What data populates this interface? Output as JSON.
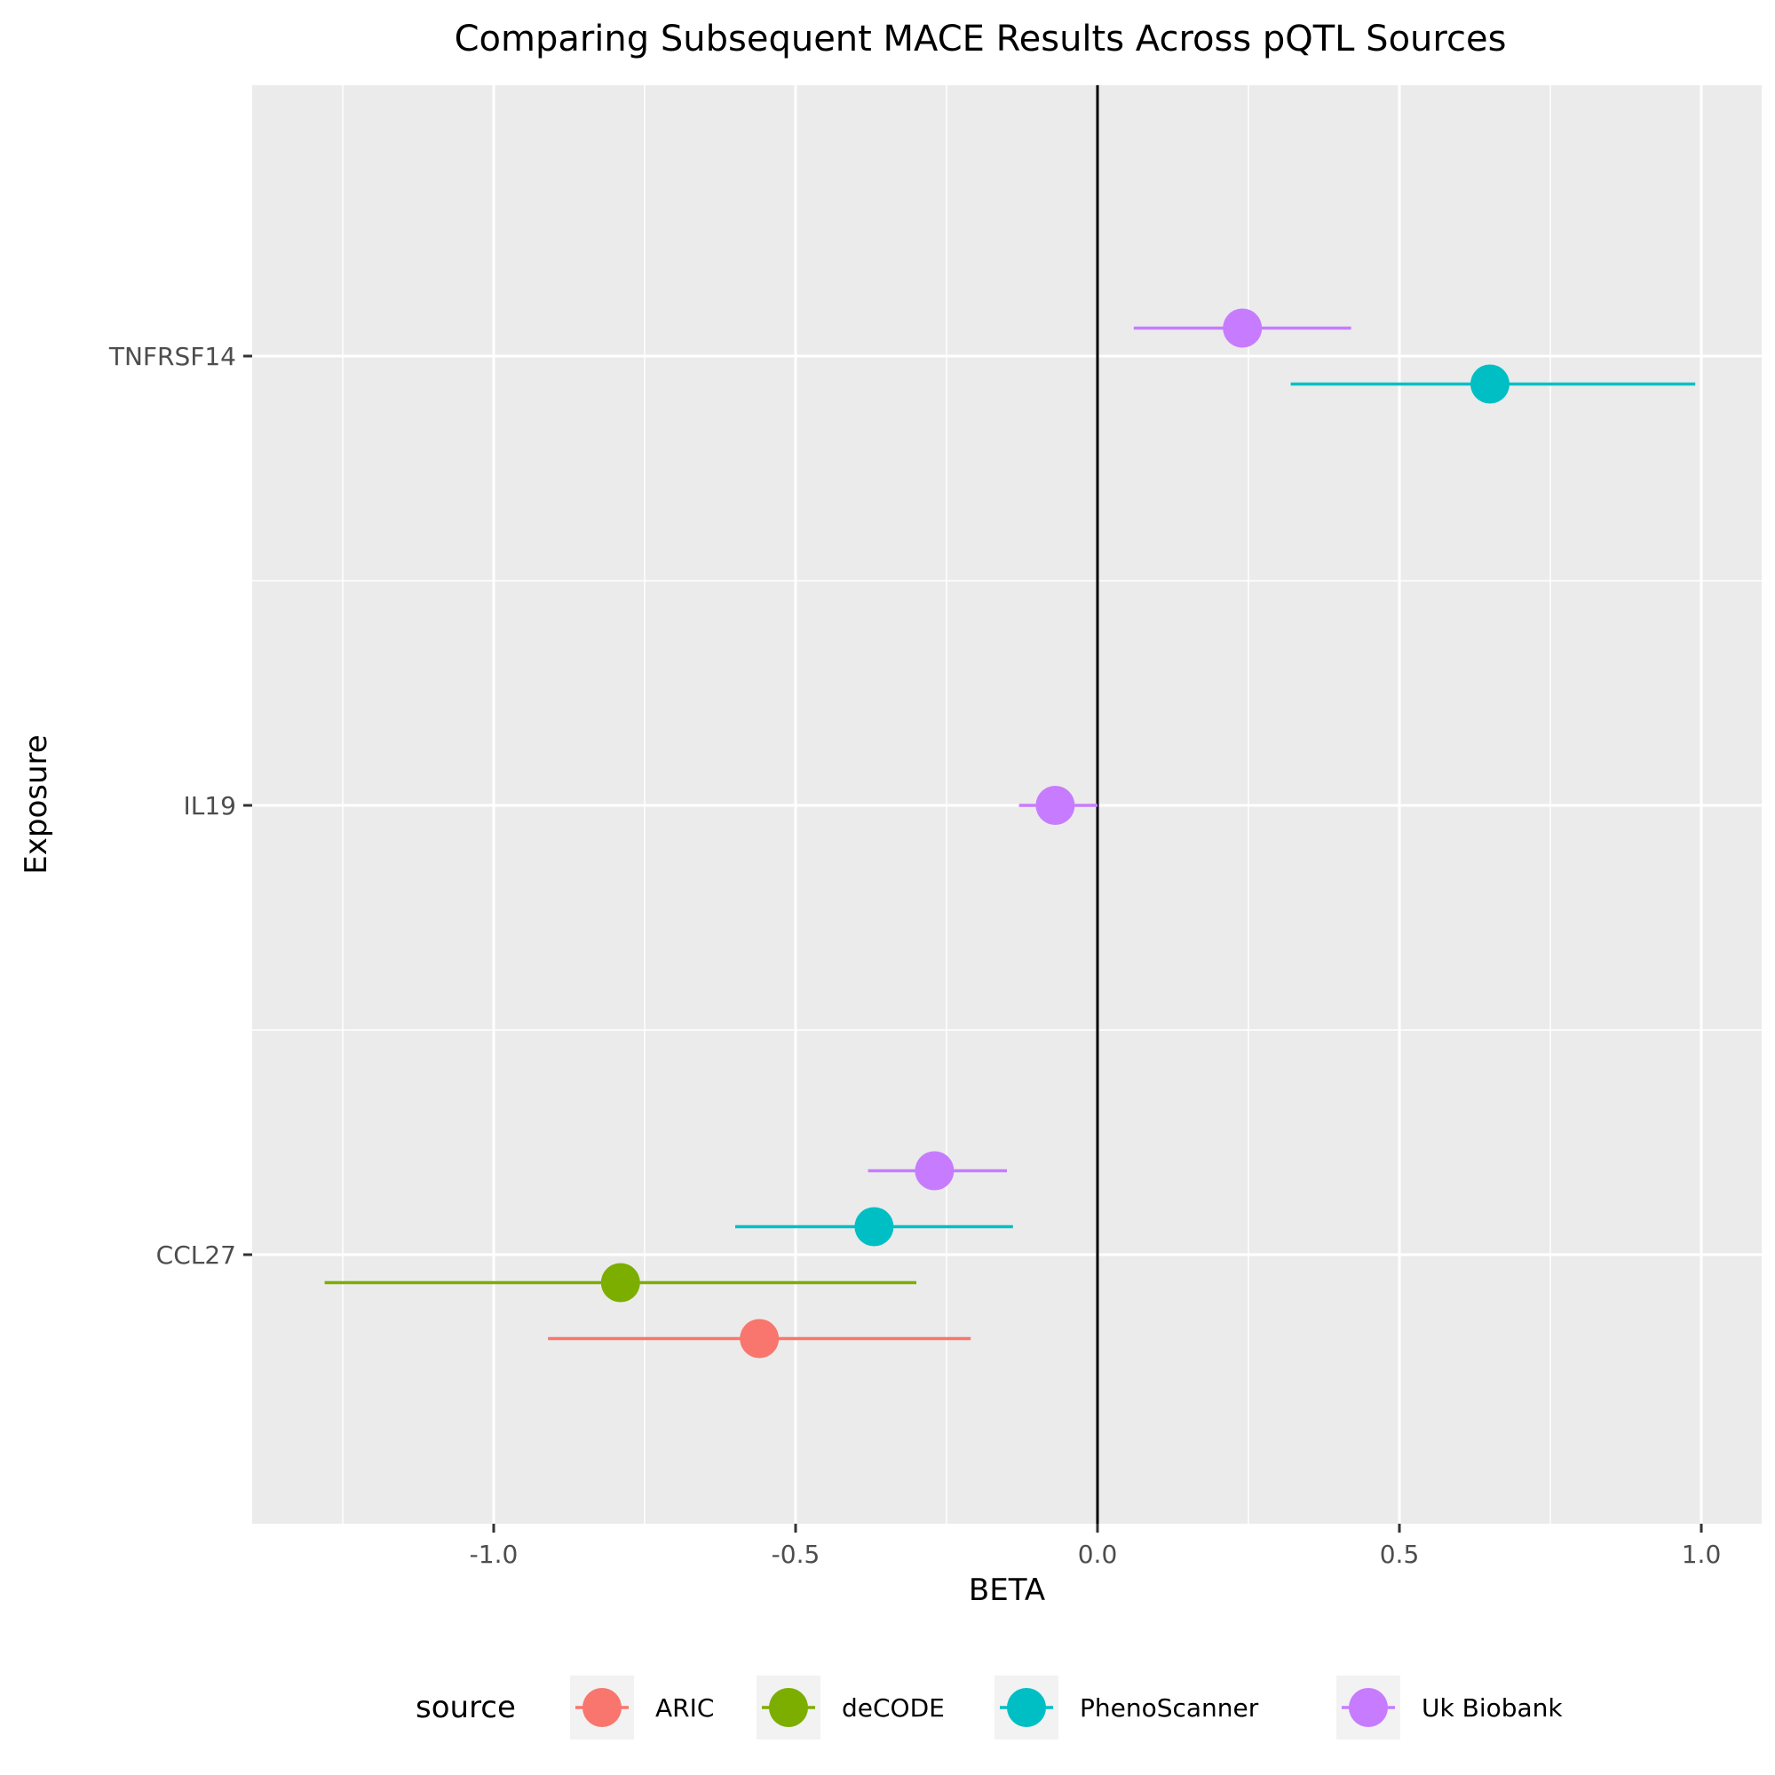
{
  "chart_data": {
    "type": "forest",
    "title": "Comparing Subsequent MACE Results Across pQTL Sources",
    "xlabel": "BETA",
    "ylabel": "Exposure",
    "xlim": [
      -1.4,
      1.1
    ],
    "x_ticks": [
      -1.0,
      -0.5,
      0.0,
      0.5,
      1.0
    ],
    "x_tick_labels": [
      "-1.0",
      "-0.5",
      "0.0",
      "0.5",
      "1.0"
    ],
    "categories": [
      "CCL27",
      "IL19",
      "TNFRSF14"
    ],
    "reference_line": 0.0,
    "grid": true,
    "legend": {
      "title": "source",
      "position": "bottom"
    },
    "series": [
      {
        "name": "ARIC",
        "color": "#F8766D",
        "points": [
          {
            "category": "CCL27",
            "beta": -0.56,
            "lo": -0.91,
            "hi": -0.21
          }
        ]
      },
      {
        "name": "deCODE",
        "color": "#7CAE00",
        "points": [
          {
            "category": "CCL27",
            "beta": -0.79,
            "lo": -1.28,
            "hi": -0.3
          }
        ]
      },
      {
        "name": "PhenoScanner",
        "color": "#00BFC4",
        "points": [
          {
            "category": "CCL27",
            "beta": -0.37,
            "lo": -0.6,
            "hi": -0.14
          },
          {
            "category": "TNFRSF14",
            "beta": 0.65,
            "lo": 0.32,
            "hi": 0.99
          }
        ]
      },
      {
        "name": "Uk Biobank",
        "color": "#C77CFF",
        "points": [
          {
            "category": "CCL27",
            "beta": -0.27,
            "lo": -0.38,
            "hi": -0.15
          },
          {
            "category": "IL19",
            "beta": -0.07,
            "lo": -0.13,
            "hi": 0.0
          },
          {
            "category": "TNFRSF14",
            "beta": 0.24,
            "lo": 0.06,
            "hi": 0.42
          }
        ]
      }
    ]
  }
}
